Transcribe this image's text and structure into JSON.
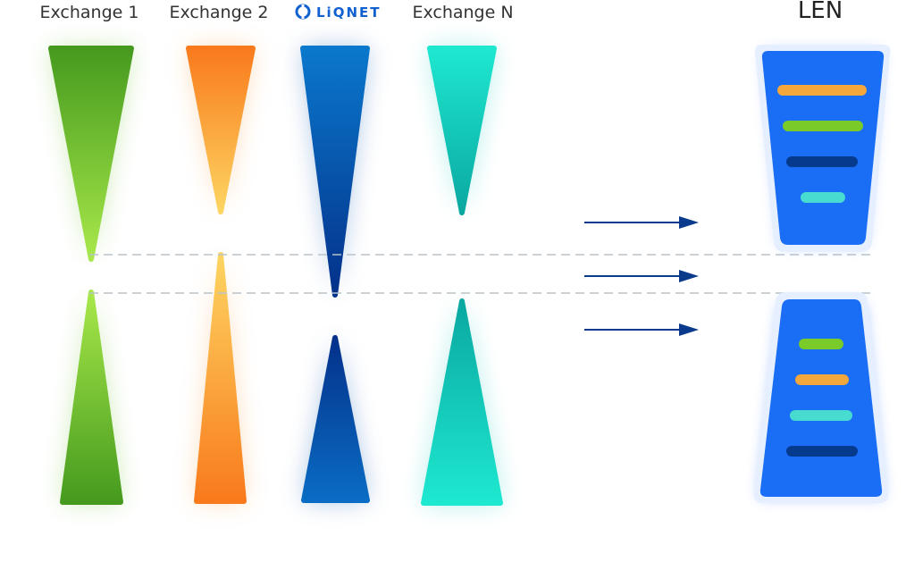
{
  "columns": [
    {
      "label": "Exchange 1"
    },
    {
      "label": "Exchange 2"
    },
    {
      "label": "LiQNET"
    },
    {
      "label": "Exchange N"
    }
  ],
  "target": {
    "label": "LEN"
  }
}
